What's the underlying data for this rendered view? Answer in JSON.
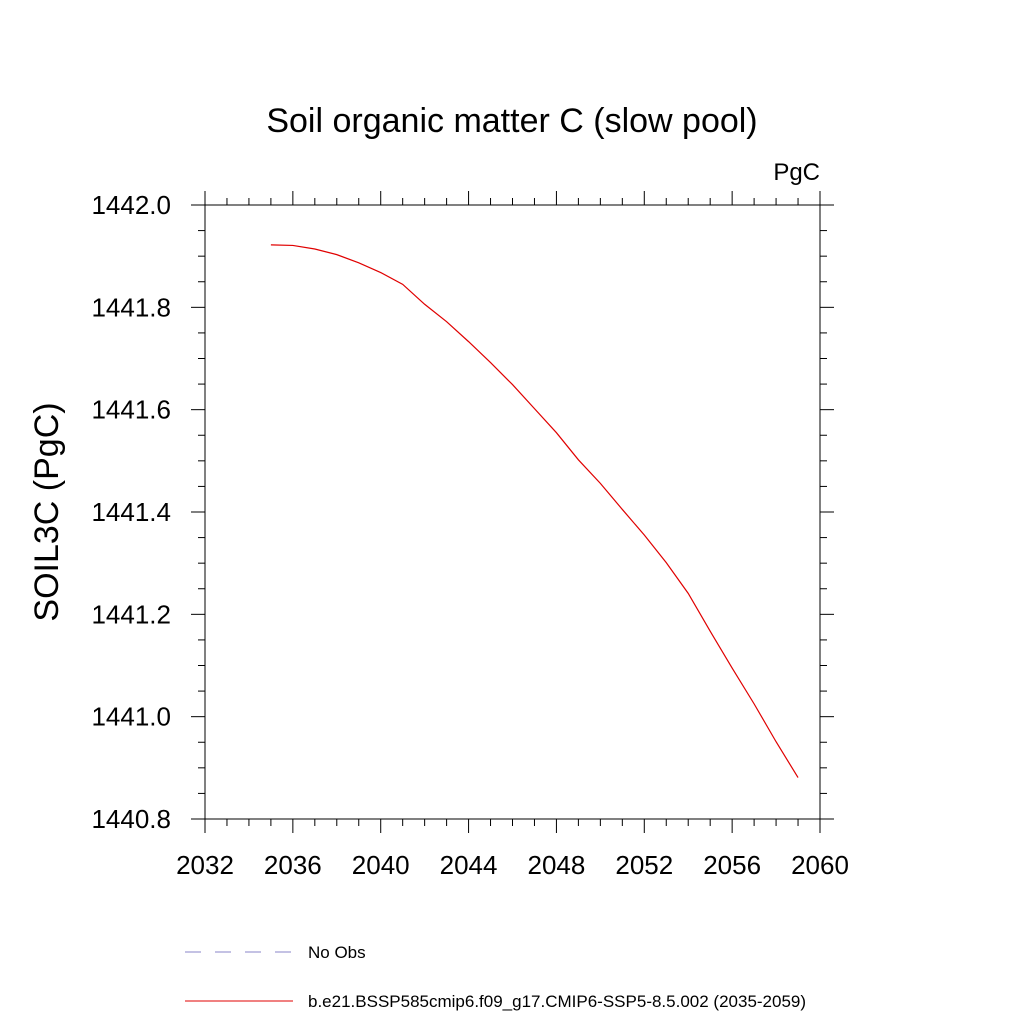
{
  "chart_data": {
    "type": "line",
    "title": "Soil organic matter C (slow pool)",
    "units_label": "PgC",
    "ylabel": "SOIL3C  (PgC)",
    "xlabel": "",
    "xlim": [
      2032,
      2060
    ],
    "ylim": [
      1440.8,
      1442.0
    ],
    "x_ticks": [
      2032,
      2036,
      2040,
      2044,
      2048,
      2052,
      2056,
      2060
    ],
    "x_tick_labels": [
      "2032",
      "2036",
      "2040",
      "2044",
      "2048",
      "2052",
      "2056",
      "2060"
    ],
    "y_ticks": [
      1440.8,
      1441.0,
      1441.2,
      1441.4,
      1441.6,
      1441.8,
      1442.0
    ],
    "y_tick_labels": [
      "1440.8",
      "1441.0",
      "1441.2",
      "1441.4",
      "1441.6",
      "1441.8",
      "1442.0"
    ],
    "grid": false,
    "legend_position": "bottom",
    "series": [
      {
        "name": "b.e21.BSSP585cmip6.f09_g17.CMIP6-SSP5-8.5.002 (2035-2059)",
        "color": "#e00000",
        "style": "solid",
        "x": [
          2035,
          2036,
          2037,
          2038,
          2039,
          2040,
          2041,
          2042,
          2043,
          2044,
          2045,
          2046,
          2047,
          2048,
          2049,
          2050,
          2051,
          2052,
          2053,
          2054,
          2055,
          2056,
          2057,
          2058,
          2059
        ],
        "values": [
          1441.922,
          1441.921,
          1441.914,
          1441.903,
          1441.887,
          1441.868,
          1441.845,
          1441.806,
          1441.772,
          1441.733,
          1441.692,
          1441.649,
          1441.602,
          1441.555,
          1441.502,
          1441.456,
          1441.405,
          1441.355,
          1441.301,
          1441.241,
          1441.167,
          1441.095,
          1441.025,
          1440.951,
          1440.881
        ]
      },
      {
        "name": "No Obs",
        "color": "#8a86c8",
        "style": "dashed",
        "x": [],
        "values": []
      }
    ]
  }
}
